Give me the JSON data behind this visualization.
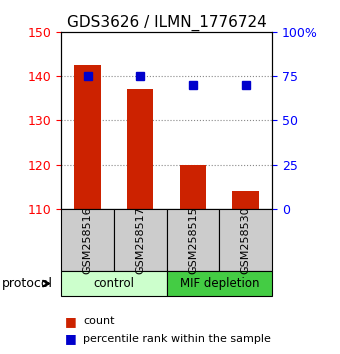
{
  "title": "GDS3626 / ILMN_1776724",
  "samples": [
    "GSM258516",
    "GSM258517",
    "GSM258515",
    "GSM258530"
  ],
  "bar_values": [
    142.5,
    137.0,
    120.0,
    114.0
  ],
  "percentile_values": [
    75,
    75,
    70,
    70
  ],
  "bar_color": "#cc2200",
  "percentile_color": "#0000cc",
  "ylim_left": [
    110,
    150
  ],
  "ylim_right": [
    0,
    100
  ],
  "yticks_left": [
    110,
    120,
    130,
    140,
    150
  ],
  "yticks_right": [
    0,
    25,
    50,
    75,
    100
  ],
  "yticklabels_right": [
    "0",
    "25",
    "50",
    "75",
    "100%"
  ],
  "groups": [
    {
      "label": "control",
      "indices": [
        0,
        1
      ],
      "color": "#ccffcc"
    },
    {
      "label": "MIF depletion",
      "indices": [
        2,
        3
      ],
      "color": "#44cc44"
    }
  ],
  "protocol_label": "protocol",
  "legend_count_label": "count",
  "legend_percentile_label": "percentile rank within the sample",
  "sample_box_color": "#cccccc",
  "title_fontsize": 11,
  "tick_fontsize": 9,
  "bar_width": 0.5,
  "dotted_grid_color": "#888888"
}
